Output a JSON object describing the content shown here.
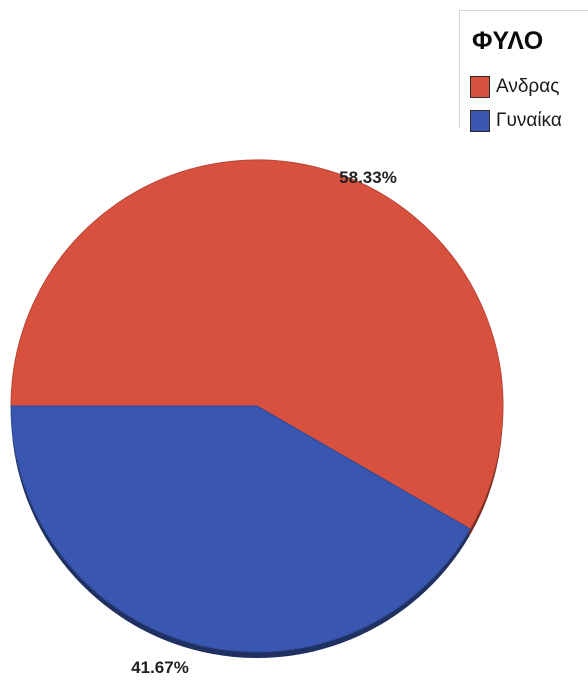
{
  "chart_data": {
    "type": "pie",
    "legend_title": "ΦΥΛΟ",
    "legend_position": "top-right",
    "slices": [
      {
        "label": "Ανδρας",
        "value": 58.33,
        "display": "58.33%",
        "color": "#d8513f"
      },
      {
        "label": "Γυναίκα",
        "value": 41.67,
        "display": "41.67%",
        "color": "#3957b0"
      }
    ]
  }
}
